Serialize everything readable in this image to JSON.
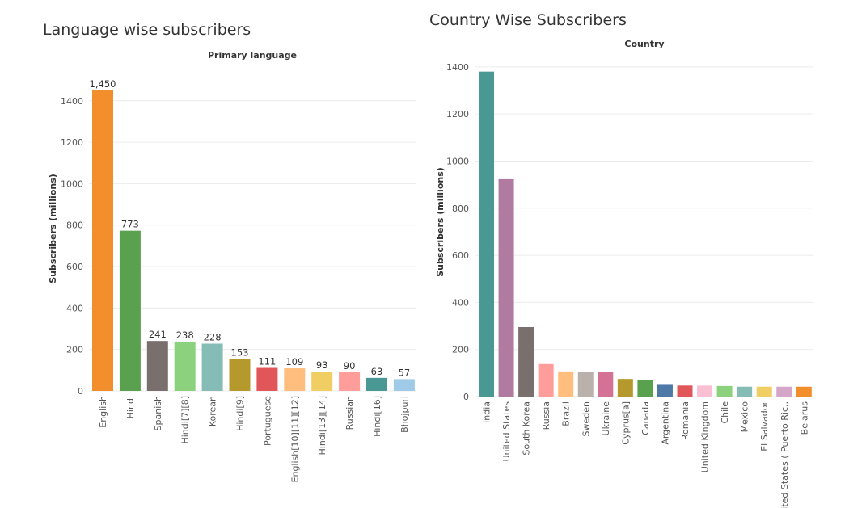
{
  "chart_data": [
    {
      "type": "bar",
      "title": "Language wise subscribers",
      "header": "Primary language",
      "xlabel": "",
      "ylabel": "Subscribers (millions)",
      "ylim": [
        0,
        1520
      ],
      "yticks": [
        0,
        200,
        400,
        600,
        800,
        1000,
        1200,
        1400
      ],
      "grid": true,
      "categories": [
        "English",
        "Hindi",
        "Spanish",
        "Hindi[7][8]",
        "Korean",
        "Hindi[9]",
        "Portuguese",
        "English[10][11][12]",
        "Hindi[13][14]",
        "Russian",
        "Hindi[16]",
        "Bhojpuri"
      ],
      "values": [
        1450,
        773,
        241,
        238,
        228,
        153,
        111,
        109,
        93,
        90,
        63,
        57
      ],
      "value_labels": [
        "1,450",
        "773",
        "241",
        "238",
        "228",
        "153",
        "111",
        "109",
        "93",
        "90",
        "63",
        "57"
      ],
      "colors": [
        "#f28e2b",
        "#59a14f",
        "#79706e",
        "#8cd17d",
        "#86bcb6",
        "#b6992d",
        "#e15759",
        "#ffbe7d",
        "#f1ce63",
        "#ff9d9a",
        "#499894",
        "#a0cbe8"
      ]
    },
    {
      "type": "bar",
      "title": "Country Wise Subscribers",
      "header": "Country",
      "xlabel": "",
      "ylabel": "Subscribers (millions)",
      "ylim": [
        0,
        1420
      ],
      "yticks": [
        0,
        200,
        400,
        600,
        800,
        1000,
        1200,
        1400
      ],
      "grid": true,
      "categories": [
        "India",
        "United States",
        "South Korea",
        "Russia",
        "Brazil",
        "Sweden",
        "Ukraine",
        "Cyprus[a]",
        "Canada",
        "Argentina",
        "Romania",
        "United Kingdom",
        "Chile",
        "Mexico",
        "El Salvador",
        "United States ( Puerto Ric..",
        "Belarus"
      ],
      "values": [
        1380,
        923,
        295,
        138,
        107,
        106,
        106,
        75,
        69,
        50,
        47,
        47,
        45,
        42,
        42,
        42,
        42
      ],
      "colors": [
        "#499894",
        "#b07aa1",
        "#79706e",
        "#ff9d9a",
        "#ffbe7d",
        "#bab0ac",
        "#d37295",
        "#b6992d",
        "#59a14f",
        "#4e79a7",
        "#e15759",
        "#fabfd2",
        "#8cd17d",
        "#86bcb6",
        "#f1ce63",
        "#d4a6c8",
        "#f28e2b"
      ]
    }
  ]
}
